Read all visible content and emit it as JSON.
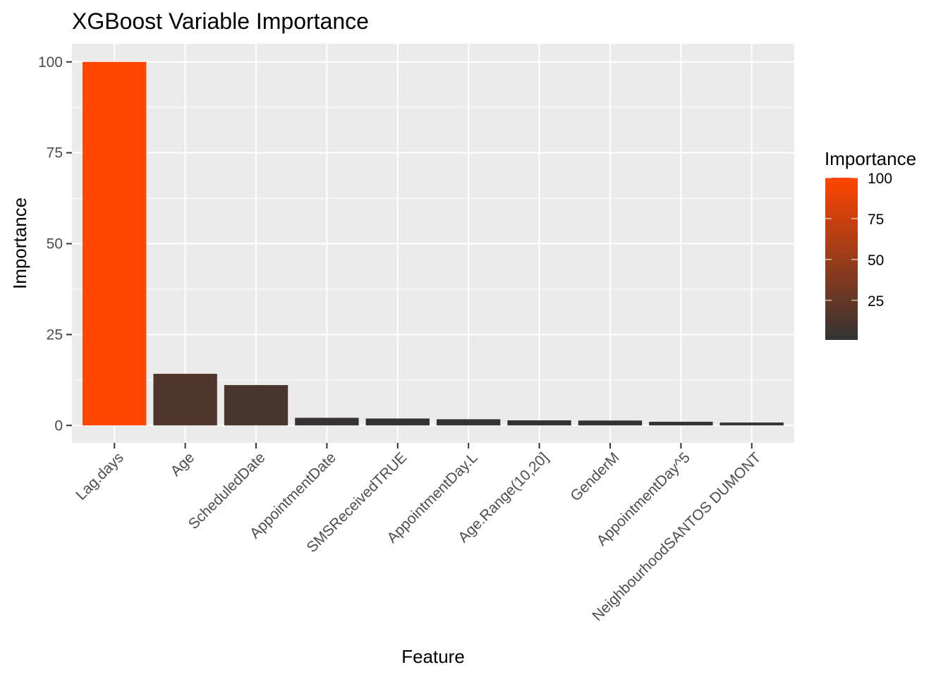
{
  "chart_data": {
    "type": "bar",
    "title": "XGBoost Variable Importance",
    "xlabel": "Feature",
    "ylabel": "Importance",
    "categories": [
      "Lag.days",
      "Age",
      "ScheduledDate",
      "AppointmentDate",
      "SMSReceivedTRUE",
      "AppointmentDay.L",
      "Age.Range(10,20]",
      "GenderM",
      "AppointmentDay^5",
      "NeighbourhoodSANTOS DUMONT"
    ],
    "values": [
      100,
      14.2,
      11.1,
      2.1,
      1.9,
      1.7,
      1.4,
      1.35,
      1.0,
      0.8
    ],
    "ylim": [
      -4.8,
      105
    ],
    "yticks": [
      0,
      25,
      50,
      75,
      100
    ],
    "grid": true,
    "background": "#ebebeb",
    "legend": {
      "title": "Importance",
      "position": "right",
      "ticks": [
        25,
        50,
        75,
        100
      ],
      "range": [
        0.8,
        100
      ],
      "low_color": "#333333",
      "high_color": "#ff4500"
    }
  }
}
